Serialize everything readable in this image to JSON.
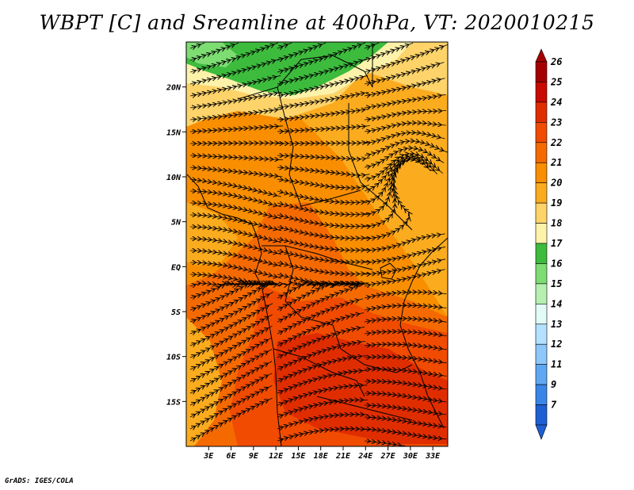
{
  "title": "WBPT [C] and Sreamline at 400hPa, VT: 2020010215",
  "credit": "GrADS: IGES/COLA",
  "map": {
    "lon_range": [
      0,
      35
    ],
    "lat_range": [
      -20,
      25
    ],
    "lat_ticks": [
      {
        "value": 20,
        "label": "20N"
      },
      {
        "value": 15,
        "label": "15N"
      },
      {
        "value": 10,
        "label": "10N"
      },
      {
        "value": 5,
        "label": "5N"
      },
      {
        "value": 0,
        "label": "EQ"
      },
      {
        "value": -5,
        "label": "5S"
      },
      {
        "value": -10,
        "label": "10S"
      },
      {
        "value": -15,
        "label": "15S"
      }
    ],
    "lon_ticks": [
      {
        "value": 3,
        "label": "3E"
      },
      {
        "value": 6,
        "label": "6E"
      },
      {
        "value": 9,
        "label": "9E"
      },
      {
        "value": 12,
        "label": "12E"
      },
      {
        "value": 15,
        "label": "15E"
      },
      {
        "value": 18,
        "label": "18E"
      },
      {
        "value": 21,
        "label": "21E"
      },
      {
        "value": 24,
        "label": "24E"
      },
      {
        "value": 27,
        "label": "27E"
      },
      {
        "value": 30,
        "label": "30E"
      },
      {
        "value": 33,
        "label": "33E"
      }
    ]
  },
  "colorbar": {
    "levels": [
      {
        "label": "26",
        "color": "#a50000"
      },
      {
        "label": "25",
        "color": "#c80a00"
      },
      {
        "label": "24",
        "color": "#e02d00"
      },
      {
        "label": "23",
        "color": "#f04b00"
      },
      {
        "label": "22",
        "color": "#f56a00"
      },
      {
        "label": "21",
        "color": "#f88e00"
      },
      {
        "label": "20",
        "color": "#fbab1e"
      },
      {
        "label": "19",
        "color": "#fdd36a"
      },
      {
        "label": "18",
        "color": "#fdf2aa"
      },
      {
        "label": "17",
        "color": "#3dbb3d"
      },
      {
        "label": "16",
        "color": "#7ddd72"
      },
      {
        "label": "15",
        "color": "#b5f0b0"
      },
      {
        "label": "14",
        "color": "#e2fbf7"
      },
      {
        "label": "13",
        "color": "#b4e1ff"
      },
      {
        "label": "12",
        "color": "#8ec8fb"
      },
      {
        "label": "11",
        "color": "#5fa7f2"
      },
      {
        "label": "9",
        "color": "#3a86e8"
      },
      {
        "label": "7",
        "color": "#1f5fd4"
      }
    ],
    "bottom_color": "#1f5fd4",
    "top_color": "#a50000"
  }
}
